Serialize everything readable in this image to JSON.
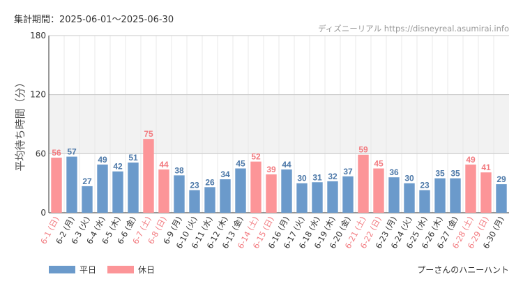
{
  "header": {
    "period_label": "集計期間：2025-06-01〜2025-06-30",
    "credit": "ディズニーリアル https://disneyreal.asumirai.info"
  },
  "attraction": "プーさんのハニーハント",
  "legend": {
    "weekday": {
      "label": "平日",
      "color": "#6b9acb"
    },
    "holiday": {
      "label": "休日",
      "color": "#fc9598"
    }
  },
  "colors": {
    "weekday_label": "#4c78a8",
    "holiday_label": "#f27b80",
    "band": "#f2f2f2"
  },
  "chart_data": {
    "type": "bar",
    "ylabel": "平均待ち時間（分）",
    "ylim": [
      0,
      180
    ],
    "yticks": [
      0,
      60,
      120,
      180
    ],
    "shaded_band": [
      60,
      120
    ],
    "categories": [
      "6-1 (日)",
      "6-2 (月)",
      "6-3 (火)",
      "6-4 (水)",
      "6-5 (木)",
      "6-6 (金)",
      "6-7 (土)",
      "6-8 (日)",
      "6-9 (月)",
      "6-10 (火)",
      "6-11 (水)",
      "6-12 (木)",
      "6-13 (金)",
      "6-14 (土)",
      "6-15 (日)",
      "6-16 (月)",
      "6-17 (火)",
      "6-18 (水)",
      "6-19 (木)",
      "6-20 (金)",
      "6-21 (土)",
      "6-22 (日)",
      "6-23 (月)",
      "6-24 (火)",
      "6-25 (水)",
      "6-26 (木)",
      "6-27 (金)",
      "6-28 (土)",
      "6-29 (日)",
      "6-30 (月)"
    ],
    "values": [
      56,
      57,
      27,
      49,
      42,
      51,
      75,
      44,
      38,
      23,
      26,
      34,
      45,
      52,
      39,
      44,
      30,
      31,
      32,
      37,
      59,
      45,
      36,
      30,
      23,
      35,
      35,
      49,
      41,
      29
    ],
    "holiday": [
      true,
      false,
      false,
      false,
      false,
      false,
      true,
      true,
      false,
      false,
      false,
      false,
      false,
      true,
      true,
      false,
      false,
      false,
      false,
      false,
      true,
      true,
      false,
      false,
      false,
      false,
      false,
      true,
      true,
      false
    ]
  }
}
